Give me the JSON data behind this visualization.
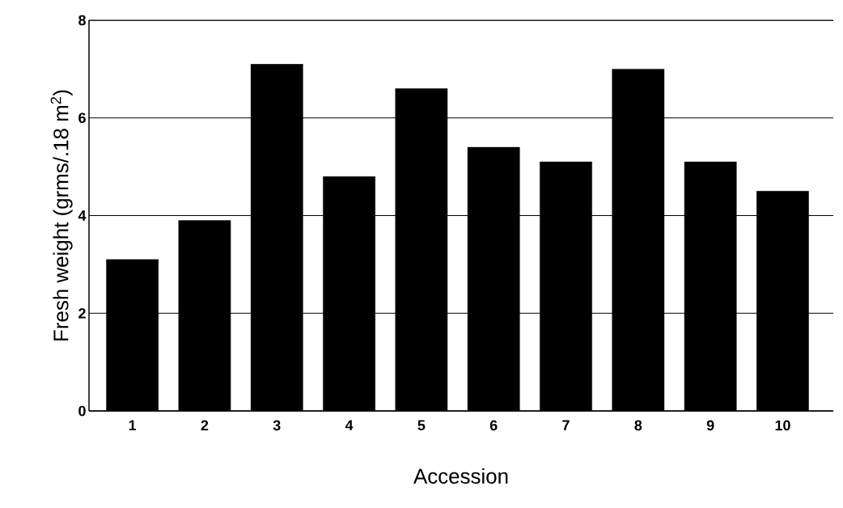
{
  "chart_data": {
    "type": "bar",
    "xlabel": "Accession",
    "ylabel": "Fresh weight (grms/.18 m$^{2}$)",
    "categories": [
      "1",
      "2",
      "3",
      "4",
      "5",
      "6",
      "7",
      "8",
      "9",
      "10"
    ],
    "values": [
      3.1,
      3.9,
      7.1,
      4.8,
      6.6,
      5.4,
      5.1,
      7.0,
      5.1,
      4.5
    ],
    "color": "#000000",
    "ylim": [
      0,
      8
    ],
    "yticks": [
      0,
      2,
      4,
      6,
      8
    ],
    "grid": "y"
  }
}
